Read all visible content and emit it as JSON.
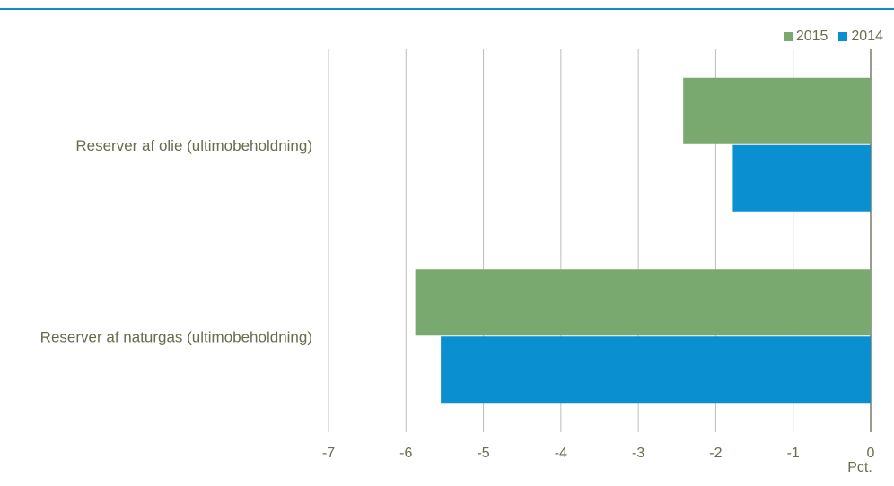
{
  "chart_data": {
    "type": "bar",
    "orientation": "horizontal",
    "categories": [
      "Reserver af olie (ultimobeholdning)",
      "Reserver af naturgas (ultimobeholdning)"
    ],
    "series": [
      {
        "name": "2015",
        "values": [
          -2.42,
          -5.88
        ],
        "color": "#79a96f"
      },
      {
        "name": "2014",
        "values": [
          -1.78,
          -5.55
        ],
        "color": "#0a8fd0"
      }
    ],
    "xlim": [
      -7,
      0
    ],
    "xticks": [
      "-7",
      "-6",
      "-5",
      "-4",
      "-3",
      "-2",
      "-1",
      "0"
    ],
    "xunit": "Pct.",
    "grid": true,
    "legend_position": "top-right"
  },
  "legend": {
    "item_2015": "2015",
    "item_2014": "2014"
  },
  "colors": {
    "accent": "#0a8fd0",
    "text": "#6b6b4f",
    "grid": "#bdbdbd"
  }
}
